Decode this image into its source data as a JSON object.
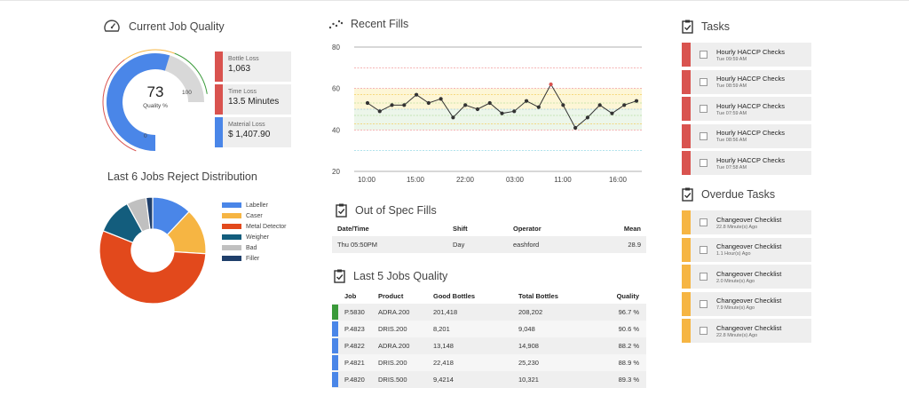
{
  "quality": {
    "title": "Current Job Quality",
    "value": "73",
    "value_label": "Quality %",
    "min_label": "0",
    "max_label": "100",
    "percent": 73,
    "losses": [
      {
        "label": "Bottle Loss",
        "value": "1,063",
        "color": "#d9534f"
      },
      {
        "label": "Time Loss",
        "value": "13.5 Minutes",
        "color": "#d9534f"
      },
      {
        "label": "Material Loss",
        "value": "$ 1,407.90",
        "color": "#4a86e8"
      }
    ]
  },
  "reject": {
    "title": "Last 6 Jobs Reject Distribution",
    "chart_data": {
      "type": "pie",
      "categories": [
        "Labeller",
        "Caser",
        "Metal Detector",
        "Weigher",
        "Bad",
        "Filler"
      ],
      "values": [
        12,
        14,
        55,
        11,
        6,
        2
      ],
      "colors": [
        "#4a86e8",
        "#f6b543",
        "#e2491c",
        "#135d7d",
        "#c0c0c0",
        "#1f3f6b"
      ]
    }
  },
  "fills": {
    "title": "Recent Fills",
    "chart_data": {
      "type": "line",
      "x_ticks": [
        "10:00",
        "15:00",
        "22:00",
        "03:00",
        "11:00",
        "16:00"
      ],
      "y_ticks": [
        "80",
        "60",
        "40",
        "20"
      ],
      "ylim": [
        20,
        80
      ],
      "values": [
        53,
        49,
        52,
        52,
        57,
        53,
        55,
        46,
        52,
        50,
        53,
        48,
        49,
        54,
        51,
        62,
        52,
        41,
        46,
        52,
        48,
        52,
        54
      ],
      "highlight_index": 15
    }
  },
  "out_of_spec": {
    "title": "Out of Spec Fills",
    "headers": [
      "Date/Time",
      "Shift",
      "Operator",
      "Mean"
    ],
    "rows": [
      [
        "Thu 05:50PM",
        "Day",
        "eashford",
        "28.9"
      ]
    ]
  },
  "last_jobs": {
    "title": "Last 5 Jobs Quality",
    "headers": [
      "Job",
      "Product",
      "Good Bottles",
      "Total Bottles",
      "Quality"
    ],
    "rows": [
      {
        "job": "P.5830",
        "product": "ADRA.200",
        "good": "201,418",
        "total": "208,202",
        "quality": "96.7 %",
        "color": "#3a9a3a"
      },
      {
        "job": "P.4823",
        "product": "DRIS.200",
        "good": "8,201",
        "total": "9,048",
        "quality": "90.6 %",
        "color": "#4a86e8"
      },
      {
        "job": "P.4822",
        "product": "ADRA.200",
        "good": "13,148",
        "total": "14,908",
        "quality": "88.2 %",
        "color": "#4a86e8"
      },
      {
        "job": "P.4821",
        "product": "DRIS.200",
        "good": "22,418",
        "total": "25,230",
        "quality": "88.9 %",
        "color": "#4a86e8"
      },
      {
        "job": "P.4820",
        "product": "DRIS.500",
        "good": "9,4214",
        "total": "10,321",
        "quality": "89.3 %",
        "color": "#4a86e8"
      }
    ]
  },
  "tasks": {
    "title": "Tasks",
    "color": "#d9534f",
    "items": [
      {
        "name": "Hourly HACCP Checks",
        "time": "Tue 09:59 AM"
      },
      {
        "name": "Hourly HACCP Checks",
        "time": "Tue 08:59 AM"
      },
      {
        "name": "Hourly HACCP Checks",
        "time": "Tue 07:59 AM"
      },
      {
        "name": "Hourly HACCP Checks",
        "time": "Tue 08:56 AM"
      },
      {
        "name": "Hourly HACCP Checks",
        "time": "Tue 07:58 AM"
      }
    ]
  },
  "overdue": {
    "title": "Overdue Tasks",
    "color": "#f6b543",
    "items": [
      {
        "name": "Changeover Checklist",
        "time": "22.8 Minute(s) Ago"
      },
      {
        "name": "Changeover Checklist",
        "time": "1.1 Hour(s) Ago"
      },
      {
        "name": "Changeover Checklist",
        "time": "2.0 Minute(s) Ago"
      },
      {
        "name": "Changeover Checklist",
        "time": "7.9 Minute(s) Ago"
      },
      {
        "name": "Changeover Checklist",
        "time": "22.8 Minute(s) Ago"
      }
    ]
  }
}
